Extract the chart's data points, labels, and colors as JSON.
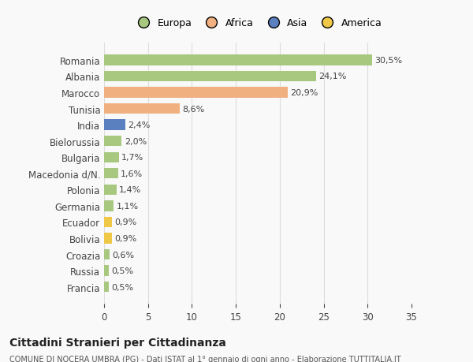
{
  "categories": [
    "Romania",
    "Albania",
    "Marocco",
    "Tunisia",
    "India",
    "Bielorussia",
    "Bulgaria",
    "Macedonia d/N.",
    "Polonia",
    "Germania",
    "Ecuador",
    "Bolivia",
    "Croazia",
    "Russia",
    "Francia"
  ],
  "values": [
    30.5,
    24.1,
    20.9,
    8.6,
    2.4,
    2.0,
    1.7,
    1.6,
    1.4,
    1.1,
    0.9,
    0.9,
    0.6,
    0.5,
    0.5
  ],
  "labels": [
    "30,5%",
    "24,1%",
    "20,9%",
    "8,6%",
    "2,4%",
    "2,0%",
    "1,7%",
    "1,6%",
    "1,4%",
    "1,1%",
    "0,9%",
    "0,9%",
    "0,6%",
    "0,5%",
    "0,5%"
  ],
  "colors": [
    "#a8c880",
    "#a8c880",
    "#f0b080",
    "#f0b080",
    "#5b80c0",
    "#a8c880",
    "#a8c880",
    "#a8c880",
    "#a8c880",
    "#a8c880",
    "#f0c848",
    "#f0c848",
    "#a8c880",
    "#a8c880",
    "#a8c880"
  ],
  "legend_labels": [
    "Europa",
    "Africa",
    "Asia",
    "America"
  ],
  "legend_colors": [
    "#a8c880",
    "#f0b080",
    "#5b80c0",
    "#f0c848"
  ],
  "title": "Cittadini Stranieri per Cittadinanza",
  "subtitle": "COMUNE DI NOCERA UMBRA (PG) - Dati ISTAT al 1° gennaio di ogni anno - Elaborazione TUTTITALIA.IT",
  "xlim": [
    0,
    35
  ],
  "xticks": [
    0,
    5,
    10,
    15,
    20,
    25,
    30,
    35
  ],
  "bg_color": "#f9f9f9",
  "grid_color": "#dddddd"
}
